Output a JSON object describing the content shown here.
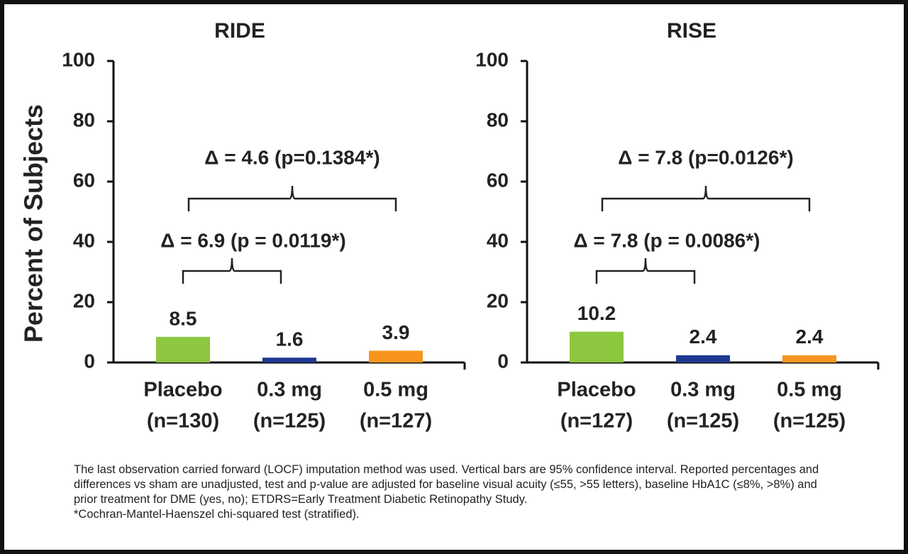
{
  "chart_data": [
    {
      "type": "bar",
      "title": "RIDE",
      "ylabel": "Percent of Subjects",
      "categories": [
        [
          "Placebo",
          "(n=130)"
        ],
        [
          "0.3 mg",
          "(n=125)"
        ],
        [
          "0.5 mg",
          "(n=127)"
        ]
      ],
      "values": [
        8.5,
        1.6,
        3.9
      ],
      "colors": [
        "#8dc63f",
        "#1f3a93",
        "#f7941d"
      ],
      "ylim": [
        0,
        100
      ],
      "yticks": [
        0,
        20,
        40,
        60,
        80,
        100
      ],
      "annotations": [
        "Δ = 4.6 (p=0.1384*)",
        "Δ = 6.9 (p = 0.0119*)"
      ]
    },
    {
      "type": "bar",
      "title": "RISE",
      "categories": [
        [
          "Placebo",
          "(n=127)"
        ],
        [
          "0.3 mg",
          "(n=125)"
        ],
        [
          "0.5 mg",
          "(n=125)"
        ]
      ],
      "values": [
        10.2,
        2.4,
        2.4
      ],
      "colors": [
        "#8dc63f",
        "#1f3a93",
        "#f7941d"
      ],
      "ylim": [
        0,
        100
      ],
      "yticks": [
        0,
        20,
        40,
        60,
        80,
        100
      ],
      "annotations": [
        "Δ = 7.8 (p=0.0126*)",
        "Δ = 7.8 (p = 0.0086*)"
      ]
    }
  ],
  "notes": [
    "The last observation carried forward (LOCF) imputation method was used. Vertical bars are 95% confidence interval. Reported percentages and differences vs sham are unadjusted, test and p-value are adjusted for baseline visual acuity (≤55, >55 letters), baseline HbA1C (≤8%, >8%) and prior treatment for DME (yes, no); ETDRS=Early Treatment Diabetic Retinopathy Study.",
    "*Cochran-Mantel-Haenszel chi-squared test (stratified)."
  ]
}
